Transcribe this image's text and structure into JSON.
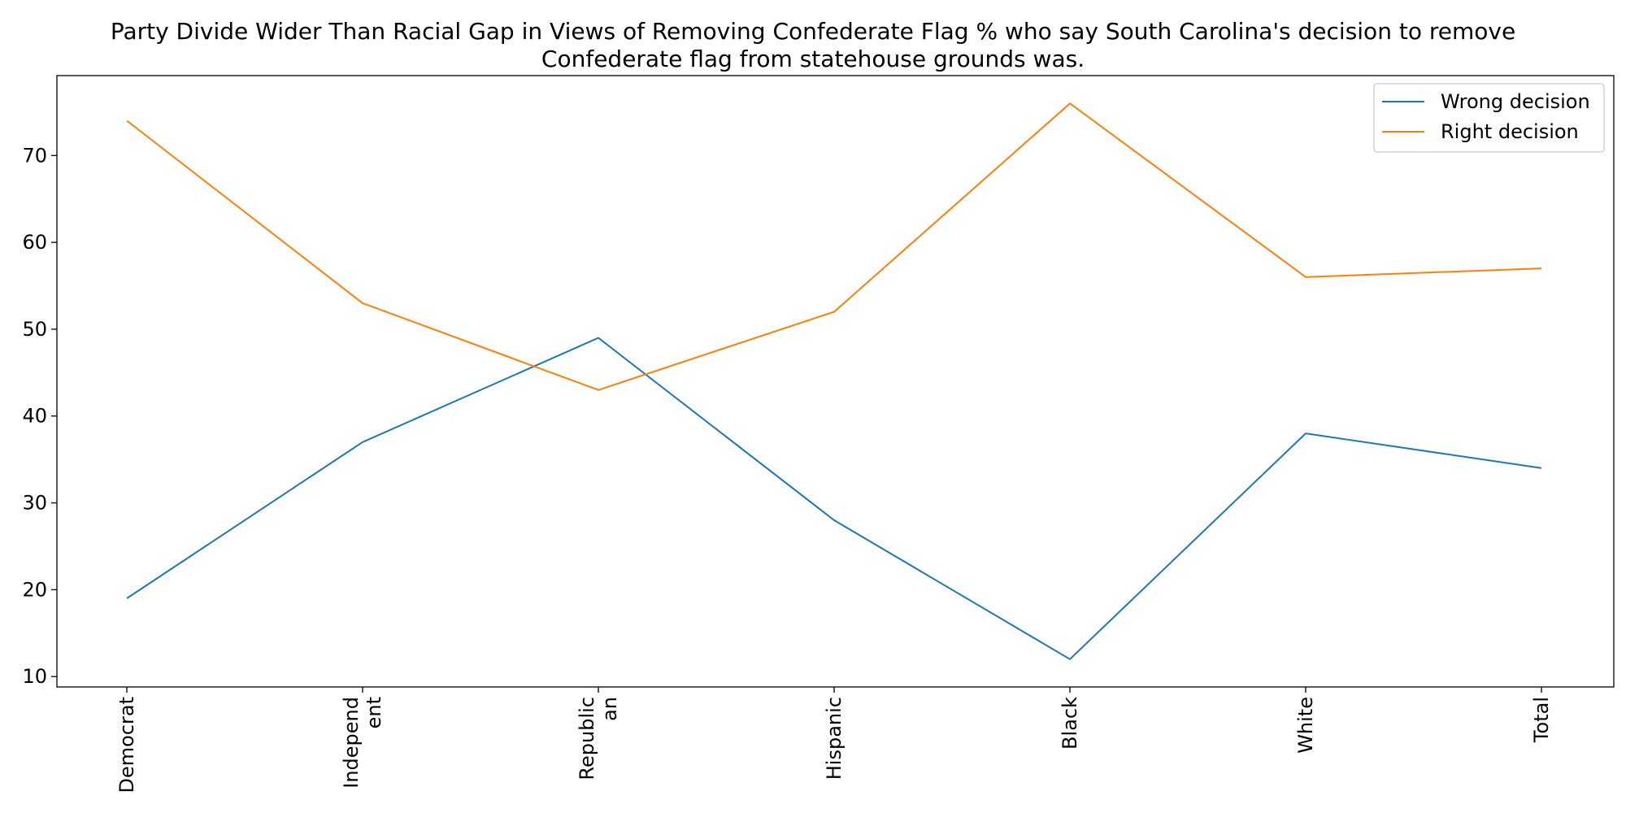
{
  "chart_data": {
    "type": "line",
    "title": "Party Divide Wider Than Racial Gap in Views of Removing Confederate Flag % who say South Carolina's decision to remove Confederate flag from statehouse grounds was.",
    "categories": [
      "Democrat",
      "Independent",
      "Republican",
      "Hispanic",
      "Black",
      "White",
      "Total"
    ],
    "category_labels": [
      [
        "Democrat"
      ],
      [
        "Independ",
        "ent"
      ],
      [
        "Republic",
        "an"
      ],
      [
        "Hispanic"
      ],
      [
        "Black"
      ],
      [
        "White"
      ],
      [
        "Total"
      ]
    ],
    "series": [
      {
        "name": "Wrong decision",
        "color": "#1f77b4",
        "values": [
          19,
          37,
          49,
          28,
          12,
          38,
          34
        ]
      },
      {
        "name": "Right decision",
        "color": "#ff7f0e",
        "values": [
          74,
          53,
          43,
          52,
          76,
          56,
          57
        ]
      }
    ],
    "yticks": [
      10,
      20,
      30,
      40,
      50,
      60,
      70
    ],
    "ylim": [
      8.8,
      79.2
    ],
    "xlabel": "",
    "ylabel": "",
    "grid": false,
    "legend": "top-right"
  }
}
